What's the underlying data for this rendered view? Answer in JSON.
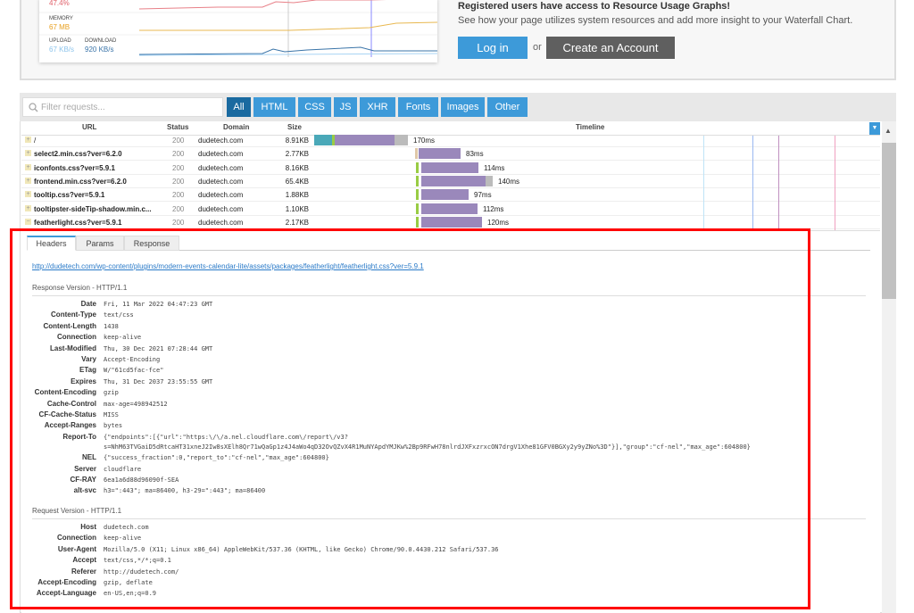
{
  "resources": {
    "cpu_value": "47.4%",
    "memory_label": "MEMORY",
    "memory_value": "67 MB",
    "upload_label": "UPLOAD",
    "upload_value": "67 KB/s",
    "download_label": "DOWNLOAD",
    "download_value": "920 KB/s",
    "colors": {
      "cpu": "#e0606a",
      "memory": "#e8b040",
      "upload": "#8cc4ec",
      "download": "#3a74a8"
    }
  },
  "promo": {
    "title": "Registered users have access to Resource Usage Graphs!",
    "text": "See how your page utilizes system resources and add more insight to your Waterfall Chart.",
    "login": "Log in",
    "or": "or",
    "create": "Create an Account"
  },
  "toolbar": {
    "filter_placeholder": "Filter requests...",
    "tabs": [
      "All",
      "HTML",
      "CSS",
      "JS",
      "XHR",
      "Fonts",
      "Images",
      "Other"
    ],
    "active_tab": "All"
  },
  "table": {
    "headers": {
      "url": "URL",
      "status": "Status",
      "domain": "Domain",
      "size": "Size",
      "timeline": "Timeline"
    },
    "rows": [
      {
        "url": "/",
        "status": "200",
        "domain": "dudetech.com",
        "size": "8.91KB",
        "time": "170ms"
      },
      {
        "url": "select2.min.css?ver=6.2.0",
        "status": "200",
        "domain": "dudetech.com",
        "size": "2.77KB",
        "time": "83ms"
      },
      {
        "url": "iconfonts.css?ver=5.9.1",
        "status": "200",
        "domain": "dudetech.com",
        "size": "8.16KB",
        "time": "114ms"
      },
      {
        "url": "frontend.min.css?ver=6.2.0",
        "status": "200",
        "domain": "dudetech.com",
        "size": "65.4KB",
        "time": "140ms"
      },
      {
        "url": "tooltip.css?ver=5.9.1",
        "status": "200",
        "domain": "dudetech.com",
        "size": "1.88KB",
        "time": "97ms"
      },
      {
        "url": "tooltipster-sideTip-shadow.min.c...",
        "status": "200",
        "domain": "dudetech.com",
        "size": "1.10KB",
        "time": "112ms"
      },
      {
        "url": "featherlight.css?ver=5.9.1",
        "status": "200",
        "domain": "dudetech.com",
        "size": "2.17KB",
        "time": "120ms"
      }
    ]
  },
  "detail": {
    "tabs": [
      "Headers",
      "Params",
      "Response"
    ],
    "active_tab": "Headers",
    "url": "http://dudetech.com/wp-content/plugins/modern-events-calendar-lite/assets/packages/featherlight/featherlight.css?ver=5.9.1",
    "response_title": "Response Version - HTTP/1.1",
    "response": [
      [
        "Date",
        "Fri, 11 Mar 2022 04:47:23 GMT"
      ],
      [
        "Content-Type",
        "text/css"
      ],
      [
        "Content-Length",
        "1438"
      ],
      [
        "Connection",
        "keep-alive"
      ],
      [
        "Last-Modified",
        "Thu, 30 Dec 2021 07:28:44 GMT"
      ],
      [
        "Vary",
        "Accept-Encoding"
      ],
      [
        "ETag",
        "W/\"61cd5fac-fce\""
      ],
      [
        "Expires",
        "Thu, 31 Dec 2037 23:55:55 GMT"
      ],
      [
        "Content-Encoding",
        "gzip"
      ],
      [
        "Cache-Control",
        "max-age=498942512"
      ],
      [
        "CF-Cache-Status",
        "MISS"
      ],
      [
        "Accept-Ranges",
        "bytes"
      ],
      [
        "Report-To",
        "{\"endpoints\":[{\"url\":\"https:\\/\\/a.nel.cloudflare.com\\/report\\/v3?",
        "s=NhM63TVGaiD5dRtcaHT31xneJ2Iw8sXElh8Qr71wQaGp1z4J4aWo4qD32OvQZvX4R1MuNYApdYMJKw%2Bp9RFwH78nlrdJXFxzrxcON7drgV1Xhe81GFV0BGXy2y9yZNo%3D\"}],\"group\":\"cf-nel\",\"max_age\":604800}"
      ],
      [
        "NEL",
        "{\"success_fraction\":0,\"report_to\":\"cf-nel\",\"max_age\":604800}"
      ],
      [
        "Server",
        "cloudflare"
      ],
      [
        "CF-RAY",
        "6ea1a6d88d96090f-SEA"
      ],
      [
        "alt-svc",
        "h3=\":443\"; ma=86400, h3-29=\":443\"; ma=86400"
      ]
    ],
    "request_title": "Request Version - HTTP/1.1",
    "request": [
      [
        "Host",
        "dudetech.com"
      ],
      [
        "Connection",
        "keep-alive"
      ],
      [
        "User-Agent",
        "Mozilla/5.0 (X11; Linux x86_64) AppleWebKit/537.36 (KHTML, like Gecko) Chrome/90.0.4430.212 Safari/537.36"
      ],
      [
        "Accept",
        "text/css,*/*;q=0.1"
      ],
      [
        "Referer",
        "http://dudetech.com/"
      ],
      [
        "Accept-Encoding",
        "gzip, deflate"
      ],
      [
        "Accept-Language",
        "en-US,en;q=0.9"
      ]
    ]
  }
}
